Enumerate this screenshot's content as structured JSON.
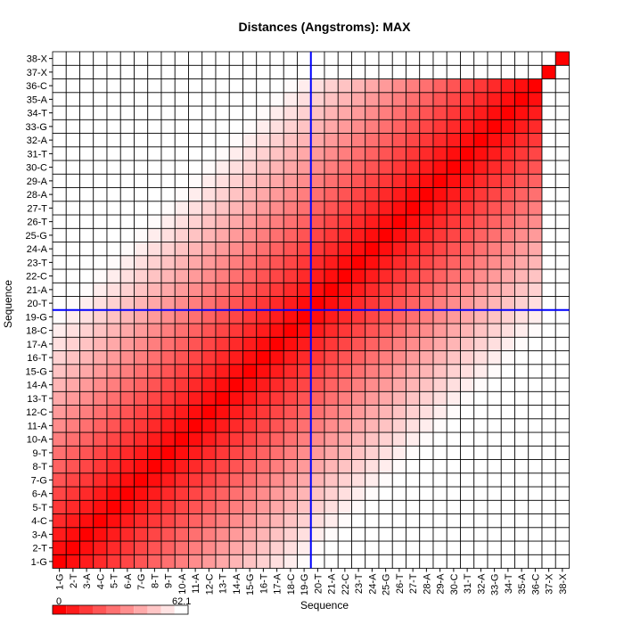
{
  "chart_data": {
    "type": "heatmap",
    "title": "Distances (Angstroms):  MAX",
    "xlabel": "Sequence",
    "ylabel": "Sequence",
    "labels": [
      "1-G",
      "2-T",
      "3-A",
      "4-C",
      "5-T",
      "6-A",
      "7-G",
      "8-T",
      "9-T",
      "10-A",
      "11-A",
      "12-C",
      "13-T",
      "14-A",
      "15-G",
      "16-T",
      "17-A",
      "18-C",
      "19-G",
      "20-T",
      "21-A",
      "22-C",
      "23-T",
      "24-A",
      "25-G",
      "26-T",
      "27-T",
      "28-A",
      "29-A",
      "30-C",
      "31-T",
      "32-A",
      "33-G",
      "34-T",
      "35-A",
      "36-C",
      "37-X",
      "38-X"
    ],
    "n_residues": 36,
    "distance_per_step": 3.4,
    "no_data_color": "#ffffff",
    "colorscale": {
      "min": "0",
      "max": "62.1",
      "low_color": "#ff0000",
      "high_color": "#ffffff"
    },
    "crosshair": {
      "x_label": "19-G",
      "y_label": "19-G",
      "color": "#0000ff"
    }
  }
}
